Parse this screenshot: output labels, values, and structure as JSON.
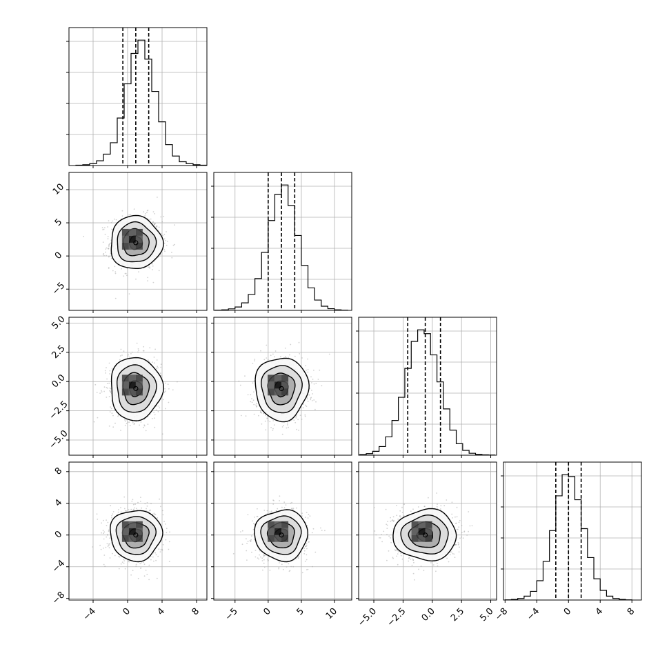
{
  "chart_data": {
    "type": "corner",
    "grid": true,
    "parameters": [
      {
        "index": 0,
        "range": [
          -6.8,
          9.2
        ],
        "ticks": [
          -4,
          0,
          4,
          8
        ],
        "tick_labels": [
          "−4",
          "0",
          "4",
          "8"
        ],
        "quantiles": [
          -0.55,
          0.95,
          2.45
        ],
        "median": 0.95,
        "sigma": 1.5
      },
      {
        "index": 1,
        "range": [
          -8.2,
          12.6
        ],
        "ticks": [
          -5,
          0,
          5,
          10
        ],
        "tick_labels": [
          "−5",
          "0",
          "5",
          "10"
        ],
        "quantiles": [
          0.0,
          2.0,
          4.0
        ],
        "median": 2.0,
        "sigma": 2.0
      },
      {
        "index": 2,
        "range": [
          -6.3,
          5.5
        ],
        "ticks": [
          -5.0,
          -2.5,
          0.0,
          2.5,
          5.0
        ],
        "tick_labels": [
          "−5.0",
          "−2.5",
          "0.0",
          "2.5",
          "5.0"
        ],
        "quantiles": [
          -2.1,
          -0.6,
          0.7
        ],
        "median": -0.6,
        "sigma": 1.35
      },
      {
        "index": 3,
        "range": [
          -8.2,
          9.2
        ],
        "ticks": [
          -8,
          -4,
          0,
          4,
          8
        ],
        "tick_labels": [
          "−8",
          "−4",
          "0",
          "4",
          "8"
        ],
        "quantiles": [
          -1.6,
          0.0,
          1.6
        ],
        "median": 0.0,
        "sigma": 1.6
      }
    ],
    "histograms": [
      {
        "param": 0,
        "bins_start": -6.0,
        "bin_width": 0.8,
        "counts": [
          2,
          4,
          10,
          25,
          60,
          120,
          250,
          430,
          590,
          660,
          560,
          390,
          230,
          110,
          50,
          20,
          10,
          4,
          2,
          1
        ]
      },
      {
        "param": 1,
        "bins_start": -8.0,
        "bin_width": 1.0,
        "counts": [
          1,
          3,
          8,
          18,
          40,
          85,
          170,
          310,
          480,
          620,
          670,
          560,
          400,
          240,
          120,
          55,
          22,
          9,
          3,
          1
        ]
      },
      {
        "param": 2,
        "bins_start": -6.2,
        "bin_width": 0.55,
        "counts": [
          3,
          8,
          20,
          45,
          95,
          180,
          300,
          450,
          590,
          650,
          630,
          520,
          380,
          240,
          130,
          60,
          25,
          10,
          4,
          2,
          1
        ]
      },
      {
        "param": 3,
        "bins_start": -8.0,
        "bin_width": 0.8,
        "counts": [
          1,
          3,
          8,
          20,
          45,
          100,
          200,
          360,
          540,
          650,
          640,
          520,
          370,
          220,
          110,
          50,
          20,
          8,
          3,
          1
        ]
      }
    ],
    "contour_levels": [
      "0.5σ",
      "1σ",
      "1.5σ",
      "2σ"
    ]
  }
}
